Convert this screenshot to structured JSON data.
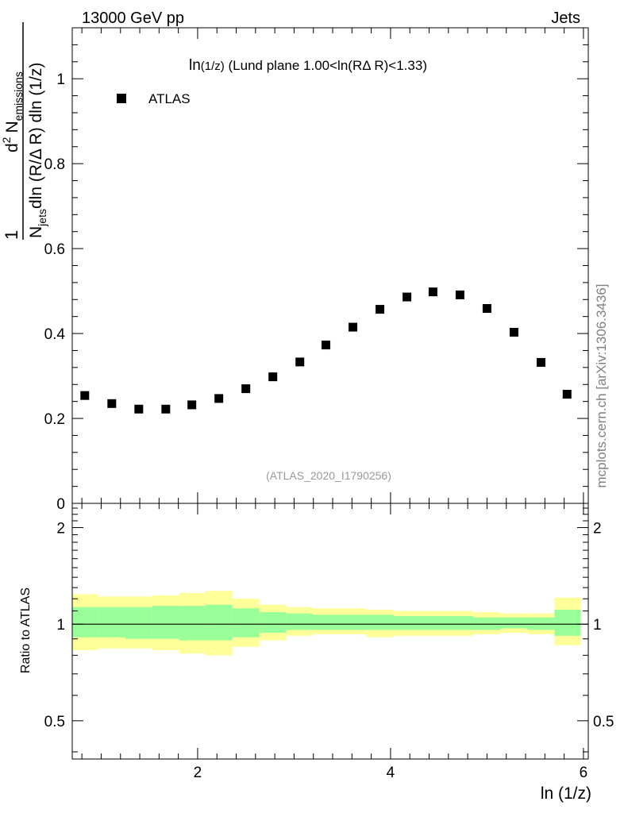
{
  "header": {
    "left": "13000 GeV pp",
    "right": "Jets"
  },
  "plot_title": {
    "main": "ln",
    "sub": "(1/z)",
    "rest": " (Lund plane 1.00<ln(RΔ R)<1.33)"
  },
  "legend": {
    "label": "ATLAS"
  },
  "watermark": "(ATLAS_2020_I1790256)",
  "side_label": "mcplots.cern.ch [arXiv:1306.3436]",
  "top_ylabel": {
    "one": "1",
    "n": "N",
    "jets_sub": "jets",
    "dln": "dln (R/Δ R) dln (1/z)",
    "d2": "d",
    "d2_sup": "2",
    "n2": "N",
    "emissions_sub": "emissions"
  },
  "bottom_ylabel": "Ratio to ATLAS",
  "xlabel": "ln (1/z)",
  "colors": {
    "marker": "#000000",
    "band_outer": "#ffff99",
    "band_inner": "#99ff99",
    "watermark": "#999999",
    "side_label": "#808080"
  },
  "chart_data": [
    {
      "type": "scatter",
      "panel": "main",
      "title": "ln(1/z) (Lund plane 1.00<ln(RΔ R)<1.33)",
      "xlabel": "ln (1/z)",
      "xlim": [
        0.7,
        6.05
      ],
      "ylim": [
        0,
        1.12
      ],
      "y_tick_labels": [
        "0",
        "0.2",
        "0.4",
        "0.6",
        "0.8",
        "1"
      ],
      "y_ticks": [
        0,
        0.2,
        0.4,
        0.6,
        0.8,
        1
      ],
      "series": [
        {
          "name": "ATLAS",
          "x": [
            0.83,
            1.11,
            1.39,
            1.67,
            1.94,
            2.22,
            2.5,
            2.78,
            3.06,
            3.33,
            3.61,
            3.89,
            4.17,
            4.44,
            4.72,
            5.0,
            5.28,
            5.56,
            5.83
          ],
          "y": [
            0.254,
            0.235,
            0.222,
            0.222,
            0.232,
            0.247,
            0.27,
            0.298,
            0.333,
            0.373,
            0.415,
            0.457,
            0.486,
            0.498,
            0.491,
            0.459,
            0.403,
            0.332,
            0.257
          ]
        }
      ]
    },
    {
      "type": "area",
      "panel": "ratio",
      "ylabel": "Ratio to ATLAS",
      "xlabel": "ln (1/z)",
      "xlim": [
        0.7,
        6.05
      ],
      "ylim": [
        0.38,
        2.38
      ],
      "x_tick_labels": [
        "2",
        "4",
        "6"
      ],
      "x_ticks": [
        2,
        4,
        6
      ],
      "y_tick_labels": [
        "0.5",
        "1",
        "2"
      ],
      "y_ticks": [
        0.5,
        1,
        2
      ],
      "bin_edges": [
        0.7,
        0.97,
        1.25,
        1.53,
        1.81,
        2.08,
        2.36,
        2.64,
        2.92,
        3.19,
        3.47,
        3.75,
        4.03,
        4.31,
        4.58,
        4.86,
        5.14,
        5.42,
        5.7,
        5.97
      ],
      "reference_line": 1,
      "series": [
        {
          "band": "outer",
          "low": [
            0.83,
            0.84,
            0.84,
            0.83,
            0.81,
            0.8,
            0.85,
            0.89,
            0.92,
            0.93,
            0.93,
            0.91,
            0.92,
            0.92,
            0.92,
            0.93,
            0.94,
            0.93,
            0.86
          ],
          "high": [
            1.24,
            1.22,
            1.22,
            1.23,
            1.25,
            1.27,
            1.2,
            1.15,
            1.13,
            1.12,
            1.12,
            1.11,
            1.1,
            1.1,
            1.1,
            1.09,
            1.08,
            1.08,
            1.21
          ]
        },
        {
          "band": "inner",
          "low": [
            0.91,
            0.91,
            0.9,
            0.9,
            0.89,
            0.89,
            0.91,
            0.94,
            0.96,
            0.96,
            0.96,
            0.96,
            0.96,
            0.96,
            0.96,
            0.96,
            0.97,
            0.96,
            0.92
          ],
          "high": [
            1.13,
            1.13,
            1.13,
            1.14,
            1.14,
            1.15,
            1.12,
            1.09,
            1.08,
            1.07,
            1.07,
            1.07,
            1.06,
            1.06,
            1.06,
            1.05,
            1.05,
            1.05,
            1.11
          ]
        }
      ]
    }
  ]
}
